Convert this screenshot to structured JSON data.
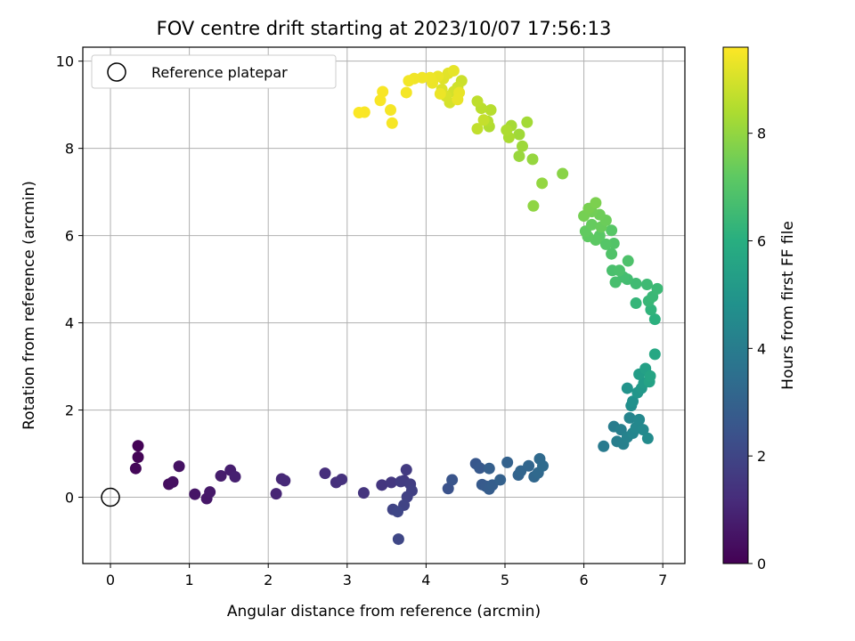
{
  "chart_data": {
    "type": "scatter",
    "title": "FOV centre drift starting at 2023/10/07 17:56:13",
    "xlabel": "Angular distance from reference (arcmin)",
    "ylabel": "Rotation from reference (arcmin)",
    "xlim": [
      -0.35,
      7.28
    ],
    "ylim": [
      -1.52,
      10.32
    ],
    "xticks": [
      0,
      1,
      2,
      3,
      4,
      5,
      6,
      7
    ],
    "yticks": [
      0,
      2,
      4,
      6,
      8,
      10
    ],
    "grid": true,
    "legend": {
      "placement": "top-left",
      "entries": [
        "Reference platepar"
      ]
    },
    "reference_point": {
      "x": 0,
      "y": 0,
      "label": "Reference platepar"
    },
    "colorbar": {
      "label": "Hours from first FF file",
      "colormap": "viridis",
      "range": [
        0,
        9.6
      ],
      "ticks": [
        0,
        2,
        4,
        6,
        8
      ]
    },
    "points": [
      {
        "x": 0.35,
        "y": 1.18,
        "t": 0.05
      },
      {
        "x": 0.35,
        "y": 0.92,
        "t": 0.1
      },
      {
        "x": 0.32,
        "y": 0.66,
        "t": 0.15
      },
      {
        "x": 0.74,
        "y": 0.3,
        "t": 0.35
      },
      {
        "x": 0.79,
        "y": 0.35,
        "t": 0.4
      },
      {
        "x": 0.87,
        "y": 0.71,
        "t": 0.45
      },
      {
        "x": 1.07,
        "y": 0.07,
        "t": 0.55
      },
      {
        "x": 1.22,
        "y": -0.03,
        "t": 0.6
      },
      {
        "x": 1.26,
        "y": 0.12,
        "t": 0.65
      },
      {
        "x": 1.4,
        "y": 0.49,
        "t": 0.75
      },
      {
        "x": 1.52,
        "y": 0.62,
        "t": 0.8
      },
      {
        "x": 1.58,
        "y": 0.47,
        "t": 0.85
      },
      {
        "x": 2.1,
        "y": 0.08,
        "t": 1.0
      },
      {
        "x": 2.17,
        "y": 0.42,
        "t": 1.05
      },
      {
        "x": 2.21,
        "y": 0.38,
        "t": 1.1
      },
      {
        "x": 2.72,
        "y": 0.55,
        "t": 1.25
      },
      {
        "x": 2.86,
        "y": 0.34,
        "t": 1.3
      },
      {
        "x": 2.93,
        "y": 0.41,
        "t": 1.35
      },
      {
        "x": 3.21,
        "y": 0.1,
        "t": 1.45
      },
      {
        "x": 3.44,
        "y": 0.28,
        "t": 1.5
      },
      {
        "x": 3.56,
        "y": 0.34,
        "t": 1.55
      },
      {
        "x": 3.72,
        "y": 0.38,
        "t": 1.6
      },
      {
        "x": 3.75,
        "y": 0.63,
        "t": 1.65
      },
      {
        "x": 3.68,
        "y": 0.36,
        "t": 1.7
      },
      {
        "x": 3.8,
        "y": 0.3,
        "t": 1.75
      },
      {
        "x": 3.82,
        "y": 0.15,
        "t": 1.8
      },
      {
        "x": 3.76,
        "y": 0.01,
        "t": 1.85
      },
      {
        "x": 3.72,
        "y": -0.18,
        "t": 1.9
      },
      {
        "x": 3.58,
        "y": -0.28,
        "t": 1.95
      },
      {
        "x": 3.64,
        "y": -0.33,
        "t": 2.0
      },
      {
        "x": 3.65,
        "y": -0.96,
        "t": 2.05
      },
      {
        "x": 4.28,
        "y": 0.2,
        "t": 2.4
      },
      {
        "x": 4.33,
        "y": 0.4,
        "t": 2.5
      },
      {
        "x": 4.63,
        "y": 0.77,
        "t": 2.6
      },
      {
        "x": 4.68,
        "y": 0.67,
        "t": 2.65
      },
      {
        "x": 4.71,
        "y": 0.29,
        "t": 2.7
      },
      {
        "x": 4.76,
        "y": 0.25,
        "t": 2.75
      },
      {
        "x": 4.8,
        "y": 0.19,
        "t": 2.8
      },
      {
        "x": 4.84,
        "y": 0.28,
        "t": 2.85
      },
      {
        "x": 4.8,
        "y": 0.66,
        "t": 2.9
      },
      {
        "x": 4.94,
        "y": 0.4,
        "t": 2.95
      },
      {
        "x": 5.03,
        "y": 0.8,
        "t": 3.0
      },
      {
        "x": 5.17,
        "y": 0.51,
        "t": 3.05
      },
      {
        "x": 5.2,
        "y": 0.6,
        "t": 3.1
      },
      {
        "x": 5.3,
        "y": 0.72,
        "t": 3.15
      },
      {
        "x": 5.37,
        "y": 0.47,
        "t": 3.2
      },
      {
        "x": 5.42,
        "y": 0.56,
        "t": 3.25
      },
      {
        "x": 5.44,
        "y": 0.88,
        "t": 3.3
      },
      {
        "x": 5.48,
        "y": 0.72,
        "t": 3.35
      },
      {
        "x": 6.25,
        "y": 1.17,
        "t": 3.9
      },
      {
        "x": 6.38,
        "y": 1.62,
        "t": 4.0
      },
      {
        "x": 6.42,
        "y": 1.28,
        "t": 4.05
      },
      {
        "x": 6.47,
        "y": 1.55,
        "t": 4.1
      },
      {
        "x": 6.5,
        "y": 1.22,
        "t": 4.15
      },
      {
        "x": 6.55,
        "y": 1.38,
        "t": 4.2
      },
      {
        "x": 6.58,
        "y": 1.82,
        "t": 4.3
      },
      {
        "x": 6.62,
        "y": 1.47,
        "t": 4.35
      },
      {
        "x": 6.66,
        "y": 1.6,
        "t": 4.4
      },
      {
        "x": 6.7,
        "y": 1.78,
        "t": 4.45
      },
      {
        "x": 6.75,
        "y": 1.55,
        "t": 4.5
      },
      {
        "x": 6.81,
        "y": 1.35,
        "t": 4.55
      },
      {
        "x": 6.6,
        "y": 2.1,
        "t": 4.7
      },
      {
        "x": 6.62,
        "y": 2.2,
        "t": 4.8
      },
      {
        "x": 6.55,
        "y": 2.5,
        "t": 4.9
      },
      {
        "x": 6.68,
        "y": 2.4,
        "t": 5.0
      },
      {
        "x": 6.73,
        "y": 2.5,
        "t": 5.1
      },
      {
        "x": 6.76,
        "y": 2.62,
        "t": 5.2
      },
      {
        "x": 6.7,
        "y": 2.82,
        "t": 5.3
      },
      {
        "x": 6.78,
        "y": 2.95,
        "t": 5.4
      },
      {
        "x": 6.83,
        "y": 2.65,
        "t": 5.5
      },
      {
        "x": 6.84,
        "y": 2.78,
        "t": 5.6
      },
      {
        "x": 6.9,
        "y": 3.28,
        "t": 5.7
      },
      {
        "x": 6.9,
        "y": 4.08,
        "t": 6.1
      },
      {
        "x": 6.85,
        "y": 4.3,
        "t": 6.2
      },
      {
        "x": 6.66,
        "y": 4.45,
        "t": 6.3
      },
      {
        "x": 6.82,
        "y": 4.5,
        "t": 6.35
      },
      {
        "x": 6.87,
        "y": 4.6,
        "t": 6.4
      },
      {
        "x": 6.93,
        "y": 4.78,
        "t": 6.45
      },
      {
        "x": 6.8,
        "y": 4.88,
        "t": 6.5
      },
      {
        "x": 6.66,
        "y": 4.9,
        "t": 6.55
      },
      {
        "x": 6.55,
        "y": 5.0,
        "t": 6.6
      },
      {
        "x": 6.5,
        "y": 5.05,
        "t": 6.65
      },
      {
        "x": 6.4,
        "y": 4.93,
        "t": 6.7
      },
      {
        "x": 6.36,
        "y": 5.2,
        "t": 6.75
      },
      {
        "x": 6.45,
        "y": 5.2,
        "t": 6.8
      },
      {
        "x": 6.56,
        "y": 5.42,
        "t": 6.85
      },
      {
        "x": 6.35,
        "y": 5.58,
        "t": 6.9
      },
      {
        "x": 6.38,
        "y": 5.82,
        "t": 6.95
      },
      {
        "x": 6.28,
        "y": 5.8,
        "t": 7.0
      },
      {
        "x": 6.35,
        "y": 6.12,
        "t": 7.05
      },
      {
        "x": 6.2,
        "y": 6.0,
        "t": 7.1
      },
      {
        "x": 6.15,
        "y": 5.9,
        "t": 7.15
      },
      {
        "x": 6.05,
        "y": 5.98,
        "t": 7.2
      },
      {
        "x": 6.02,
        "y": 6.1,
        "t": 7.25
      },
      {
        "x": 6.1,
        "y": 6.25,
        "t": 7.3
      },
      {
        "x": 6.22,
        "y": 6.2,
        "t": 7.35
      },
      {
        "x": 6.28,
        "y": 6.35,
        "t": 7.4
      },
      {
        "x": 6.2,
        "y": 6.48,
        "t": 7.45
      },
      {
        "x": 6.1,
        "y": 6.55,
        "t": 7.5
      },
      {
        "x": 6.0,
        "y": 6.45,
        "t": 7.55
      },
      {
        "x": 6.06,
        "y": 6.62,
        "t": 7.6
      },
      {
        "x": 6.15,
        "y": 6.75,
        "t": 7.65
      },
      {
        "x": 5.73,
        "y": 7.42,
        "t": 7.85
      },
      {
        "x": 5.36,
        "y": 6.68,
        "t": 7.95
      },
      {
        "x": 5.47,
        "y": 7.2,
        "t": 8.0
      },
      {
        "x": 5.35,
        "y": 7.75,
        "t": 8.05
      },
      {
        "x": 5.18,
        "y": 7.82,
        "t": 8.1
      },
      {
        "x": 5.22,
        "y": 8.05,
        "t": 8.15
      },
      {
        "x": 5.18,
        "y": 8.32,
        "t": 8.2
      },
      {
        "x": 5.28,
        "y": 8.6,
        "t": 8.25
      },
      {
        "x": 5.08,
        "y": 8.52,
        "t": 8.3
      },
      {
        "x": 5.05,
        "y": 8.25,
        "t": 8.35
      },
      {
        "x": 5.02,
        "y": 8.42,
        "t": 8.4
      },
      {
        "x": 4.8,
        "y": 8.5,
        "t": 8.45
      },
      {
        "x": 4.78,
        "y": 8.62,
        "t": 8.5
      },
      {
        "x": 4.82,
        "y": 8.88,
        "t": 8.55
      },
      {
        "x": 4.7,
        "y": 8.92,
        "t": 8.6
      },
      {
        "x": 4.65,
        "y": 9.08,
        "t": 8.65
      },
      {
        "x": 4.65,
        "y": 8.45,
        "t": 8.7
      },
      {
        "x": 4.73,
        "y": 8.65,
        "t": 8.75
      },
      {
        "x": 4.45,
        "y": 9.55,
        "t": 8.85
      },
      {
        "x": 4.4,
        "y": 9.4,
        "t": 8.9
      },
      {
        "x": 4.35,
        "y": 9.3,
        "t": 8.95
      },
      {
        "x": 4.3,
        "y": 9.05,
        "t": 9.0
      },
      {
        "x": 4.25,
        "y": 9.2,
        "t": 9.05
      },
      {
        "x": 4.2,
        "y": 9.35,
        "t": 9.1
      },
      {
        "x": 4.22,
        "y": 9.6,
        "t": 9.15
      },
      {
        "x": 4.28,
        "y": 9.72,
        "t": 9.2
      },
      {
        "x": 4.35,
        "y": 9.78,
        "t": 9.25
      },
      {
        "x": 4.42,
        "y": 9.28,
        "t": 9.28
      },
      {
        "x": 4.4,
        "y": 9.12,
        "t": 9.3
      },
      {
        "x": 4.15,
        "y": 9.65,
        "t": 9.32
      },
      {
        "x": 4.18,
        "y": 9.25,
        "t": 9.34
      },
      {
        "x": 4.08,
        "y": 9.5,
        "t": 9.36
      },
      {
        "x": 4.05,
        "y": 9.62,
        "t": 9.38
      },
      {
        "x": 3.95,
        "y": 9.62,
        "t": 9.4
      },
      {
        "x": 3.85,
        "y": 9.6,
        "t": 9.42
      },
      {
        "x": 3.78,
        "y": 9.55,
        "t": 9.44
      },
      {
        "x": 3.75,
        "y": 9.28,
        "t": 9.46
      },
      {
        "x": 3.55,
        "y": 8.88,
        "t": 9.48
      },
      {
        "x": 3.57,
        "y": 8.58,
        "t": 9.5
      },
      {
        "x": 3.45,
        "y": 9.3,
        "t": 9.52
      },
      {
        "x": 3.42,
        "y": 9.1,
        "t": 9.53
      },
      {
        "x": 3.22,
        "y": 8.83,
        "t": 9.54
      },
      {
        "x": 3.15,
        "y": 8.82,
        "t": 9.55
      }
    ]
  }
}
